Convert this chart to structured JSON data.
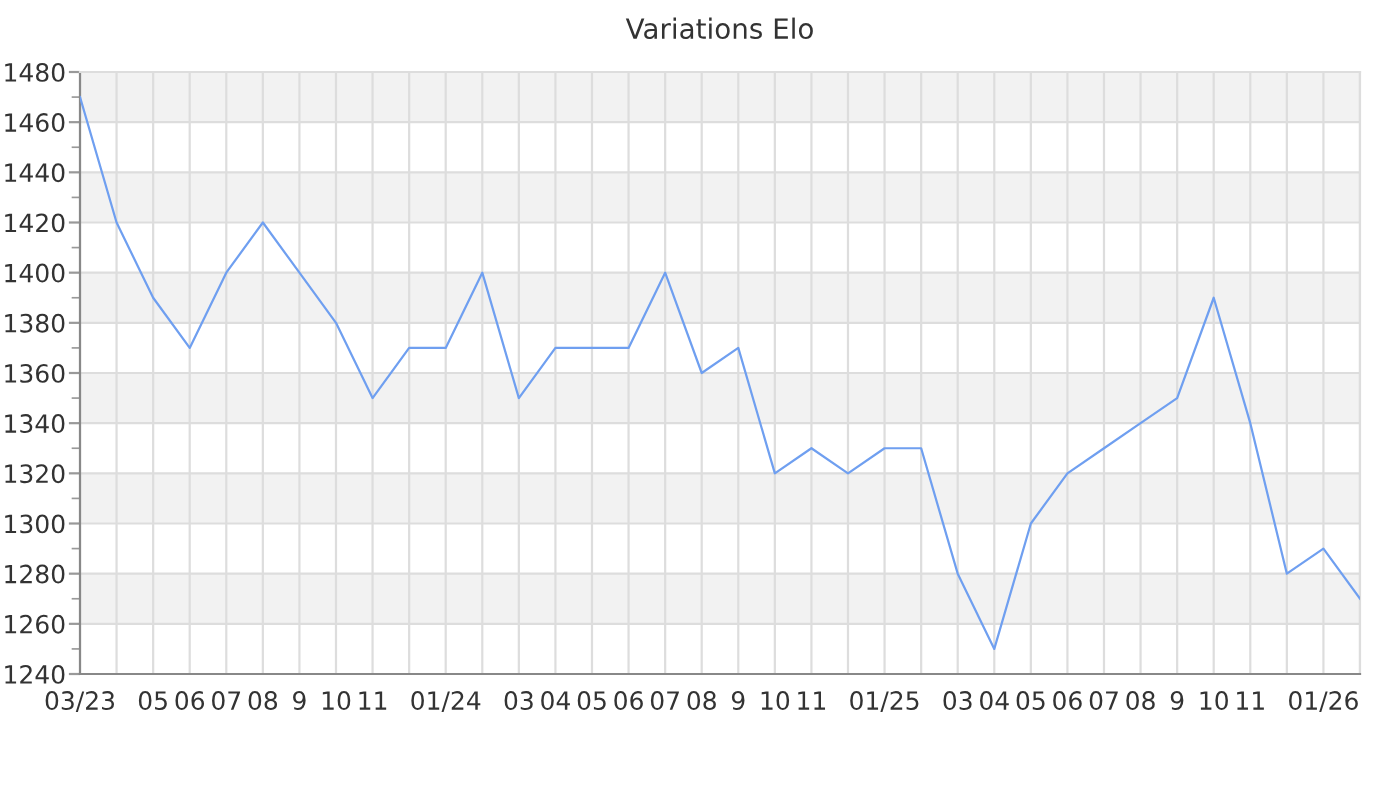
{
  "chart_data": {
    "type": "line",
    "title": "Variations Elo",
    "categories": [
      "03/23",
      null,
      "05",
      "06",
      "07",
      "08",
      "9",
      "10",
      "11",
      null,
      "01/24",
      null,
      "03",
      "04",
      "05",
      "06",
      "07",
      "08",
      "9",
      "10",
      "11",
      null,
      "01/25",
      null,
      "03",
      "04",
      "05",
      "06",
      "07",
      "08",
      "9",
      "10",
      "11",
      null,
      "01/26",
      null
    ],
    "series": [
      {
        "color": "#6f9ff0",
        "values": [
          1470,
          1420,
          1390,
          1370,
          1400,
          1420,
          1400,
          1380,
          1350,
          1370,
          1370,
          1400,
          1350,
          1370,
          1370,
          1370,
          1400,
          1360,
          1370,
          1320,
          1330,
          1320,
          1330,
          1330,
          1280,
          1250,
          1300,
          1320,
          1330,
          1340,
          1350,
          1390,
          1340,
          1280,
          1290,
          1270
        ]
      }
    ],
    "ylim": [
      1240,
      1480
    ],
    "yticks": [
      1240,
      1260,
      1280,
      1300,
      1320,
      1340,
      1360,
      1380,
      1400,
      1420,
      1440,
      1460,
      1480
    ],
    "grid": true,
    "marker": "none",
    "line_style": "solid",
    "legend": false
  }
}
